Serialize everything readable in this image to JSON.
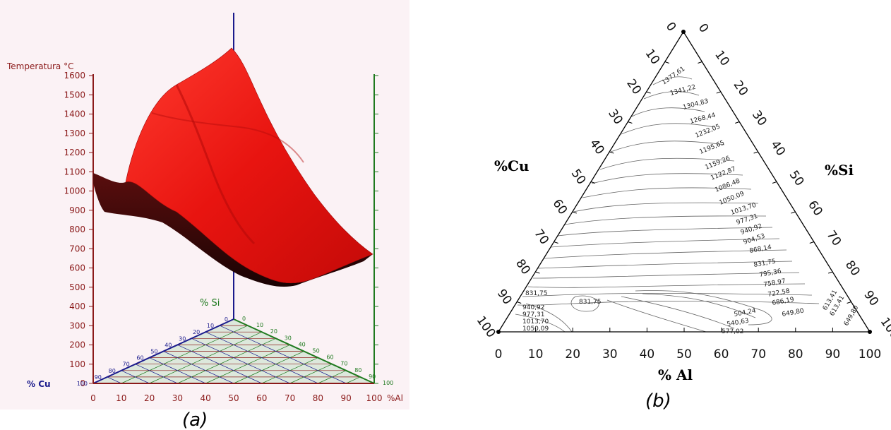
{
  "panel_a": {
    "caption": "(a)",
    "z_axis_label": "Temperatura °C",
    "z_ticks": [
      "0",
      "100",
      "200",
      "300",
      "400",
      "500",
      "600",
      "700",
      "800",
      "900",
      "1000",
      "1100",
      "1200",
      "1300",
      "1400",
      "1500",
      "1600"
    ],
    "al_axis_label": "%Al",
    "al_ticks": [
      "0",
      "10",
      "20",
      "30",
      "40",
      "50",
      "60",
      "70",
      "80",
      "90",
      "100"
    ],
    "si_label": "% Si",
    "si_ticks": [
      "0",
      "10",
      "20",
      "30",
      "40",
      "50",
      "60",
      "70",
      "80",
      "90",
      "100"
    ],
    "cu_label": "% Cu",
    "cu_ticks": [
      "0",
      "10",
      "20",
      "30",
      "40",
      "50",
      "60",
      "70",
      "80",
      "90",
      "100"
    ],
    "colors": {
      "surface": "#e01010",
      "z_axis": "#8b1a1a",
      "si_axis": "#1f7a1f",
      "cu_axis": "#1a1a8c",
      "base": "#dde8dc"
    }
  },
  "panel_b": {
    "caption": "(b)",
    "al_label": "% Al",
    "cu_label": "%Cu",
    "si_label": "%Si",
    "bottom_ticks": [
      "0",
      "10",
      "20",
      "30",
      "40",
      "50",
      "60",
      "70",
      "80",
      "90",
      "100"
    ],
    "left_ticks": [
      "100",
      "90",
      "80",
      "70",
      "60",
      "50",
      "40",
      "30",
      "20",
      "10",
      "0"
    ],
    "right_ticks": [
      "100",
      "90",
      "80",
      "70",
      "60",
      "50",
      "40",
      "30",
      "20",
      "10",
      "0"
    ],
    "isotherm_labels": [
      "1377,61",
      "1341,22",
      "1304,83",
      "1268,44",
      "1232,05",
      "1195,65",
      "1159,26",
      "1122,87",
      "1086,48",
      "1050,09",
      "1013,70",
      "977,31",
      "940,92",
      "904,53",
      "868,14",
      "831,75",
      "795,36",
      "758,97",
      "722,58",
      "686,19",
      "649,80",
      "613,41",
      "613,41",
      "649,80",
      "504,24",
      "540,63",
      "577,02",
      "831,75",
      "831,75",
      "940,92",
      "977,31",
      "1013,70",
      "1050,09"
    ]
  }
}
